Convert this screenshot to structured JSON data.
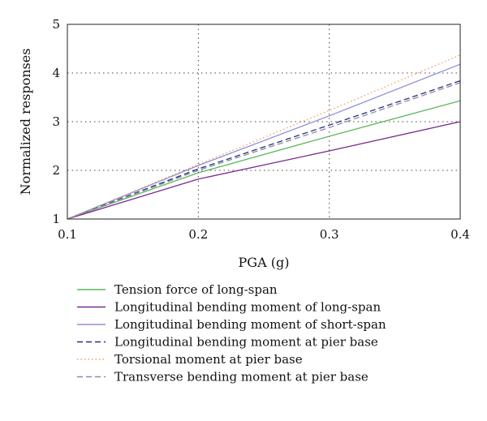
{
  "chart_data": {
    "type": "line",
    "title": "",
    "xlabel": "PGA (g)",
    "ylabel": "Normalized responses",
    "xlim": [
      0.1,
      0.4
    ],
    "ylim": [
      1,
      5
    ],
    "x_ticks": [
      "0.1",
      "0.2",
      "0.3",
      "0.4"
    ],
    "y_ticks": [
      "1",
      "2",
      "3",
      "4",
      "5"
    ],
    "grid": true,
    "legend_position": "below",
    "x": [
      0.1,
      0.2,
      0.3,
      0.4
    ],
    "series": [
      {
        "name": "Tension force of long-span",
        "color": "#5cb85c",
        "dash": "solid",
        "values": [
          1.0,
          1.95,
          2.7,
          3.43
        ]
      },
      {
        "name": "Longitudinal bending moment of long-span",
        "color": "#7a2a8c",
        "dash": "solid",
        "values": [
          1.0,
          1.82,
          2.4,
          3.0
        ]
      },
      {
        "name": "Longitudinal bending moment of short-span",
        "color": "#8f8fd6",
        "dash": "solid",
        "values": [
          1.0,
          2.1,
          3.12,
          4.18
        ]
      },
      {
        "name": "Longitudinal bending moment at pier base",
        "color": "#2a2f78",
        "dash": "dashed",
        "values": [
          1.0,
          2.03,
          2.93,
          3.84
        ]
      },
      {
        "name": "Torsional moment at pier base",
        "color": "#e8a060",
        "dash": "dotted",
        "values": [
          1.0,
          2.12,
          3.23,
          4.37
        ]
      },
      {
        "name": "Transverse bending moment at pier base",
        "color": "#8a8aa8",
        "dash": "dashed",
        "values": [
          1.0,
          2.0,
          2.88,
          3.8
        ]
      }
    ]
  }
}
